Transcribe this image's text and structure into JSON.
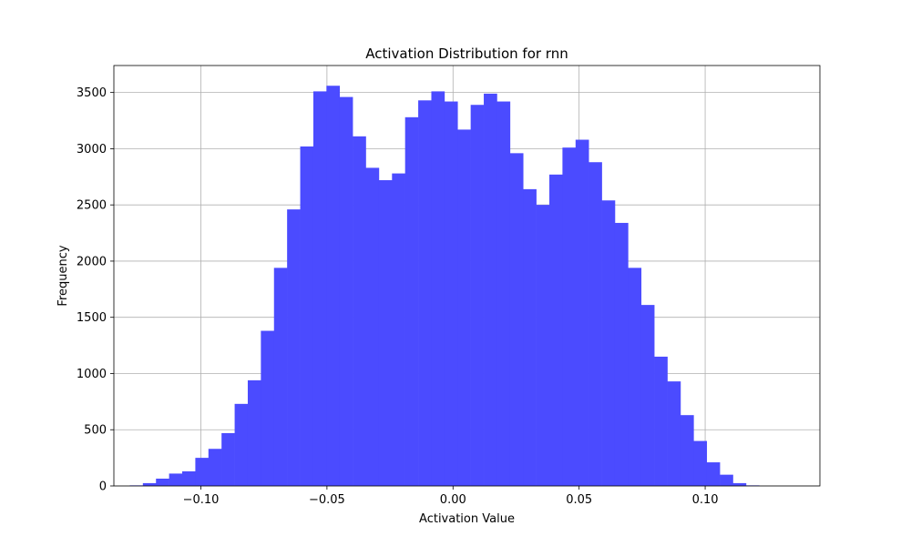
{
  "chart_data": {
    "type": "bar",
    "title": "Activation Distribution for rnn",
    "xlabel": "Activation Value",
    "ylabel": "Frequency",
    "xlim": [
      -0.1345,
      0.1455
    ],
    "ylim": [
      0,
      3740
    ],
    "xticks": [
      -0.1,
      -0.05,
      0.0,
      0.05,
      0.1
    ],
    "xtick_labels": [
      "−0.10",
      "−0.05",
      "0.00",
      "0.05",
      "0.10"
    ],
    "yticks": [
      0,
      500,
      1000,
      1500,
      2000,
      2500,
      3000,
      3500
    ],
    "ytick_labels": [
      "0",
      "500",
      "1000",
      "1500",
      "2000",
      "2500",
      "3000",
      "3500"
    ],
    "grid": true,
    "bar_color": "#4b4bff",
    "bin_start": -0.1282,
    "bin_width": 0.0052,
    "values": [
      5,
      25,
      65,
      110,
      130,
      250,
      330,
      470,
      730,
      940,
      1380,
      1940,
      2460,
      3020,
      3510,
      3560,
      3460,
      3110,
      2830,
      2720,
      2780,
      3280,
      3430,
      3510,
      3420,
      3170,
      3390,
      3490,
      3420,
      2960,
      2640,
      2500,
      2770,
      3010,
      3080,
      2880,
      2540,
      2340,
      1940,
      1610,
      1150,
      930,
      630,
      400,
      210,
      100,
      25,
      5,
      0
    ]
  }
}
